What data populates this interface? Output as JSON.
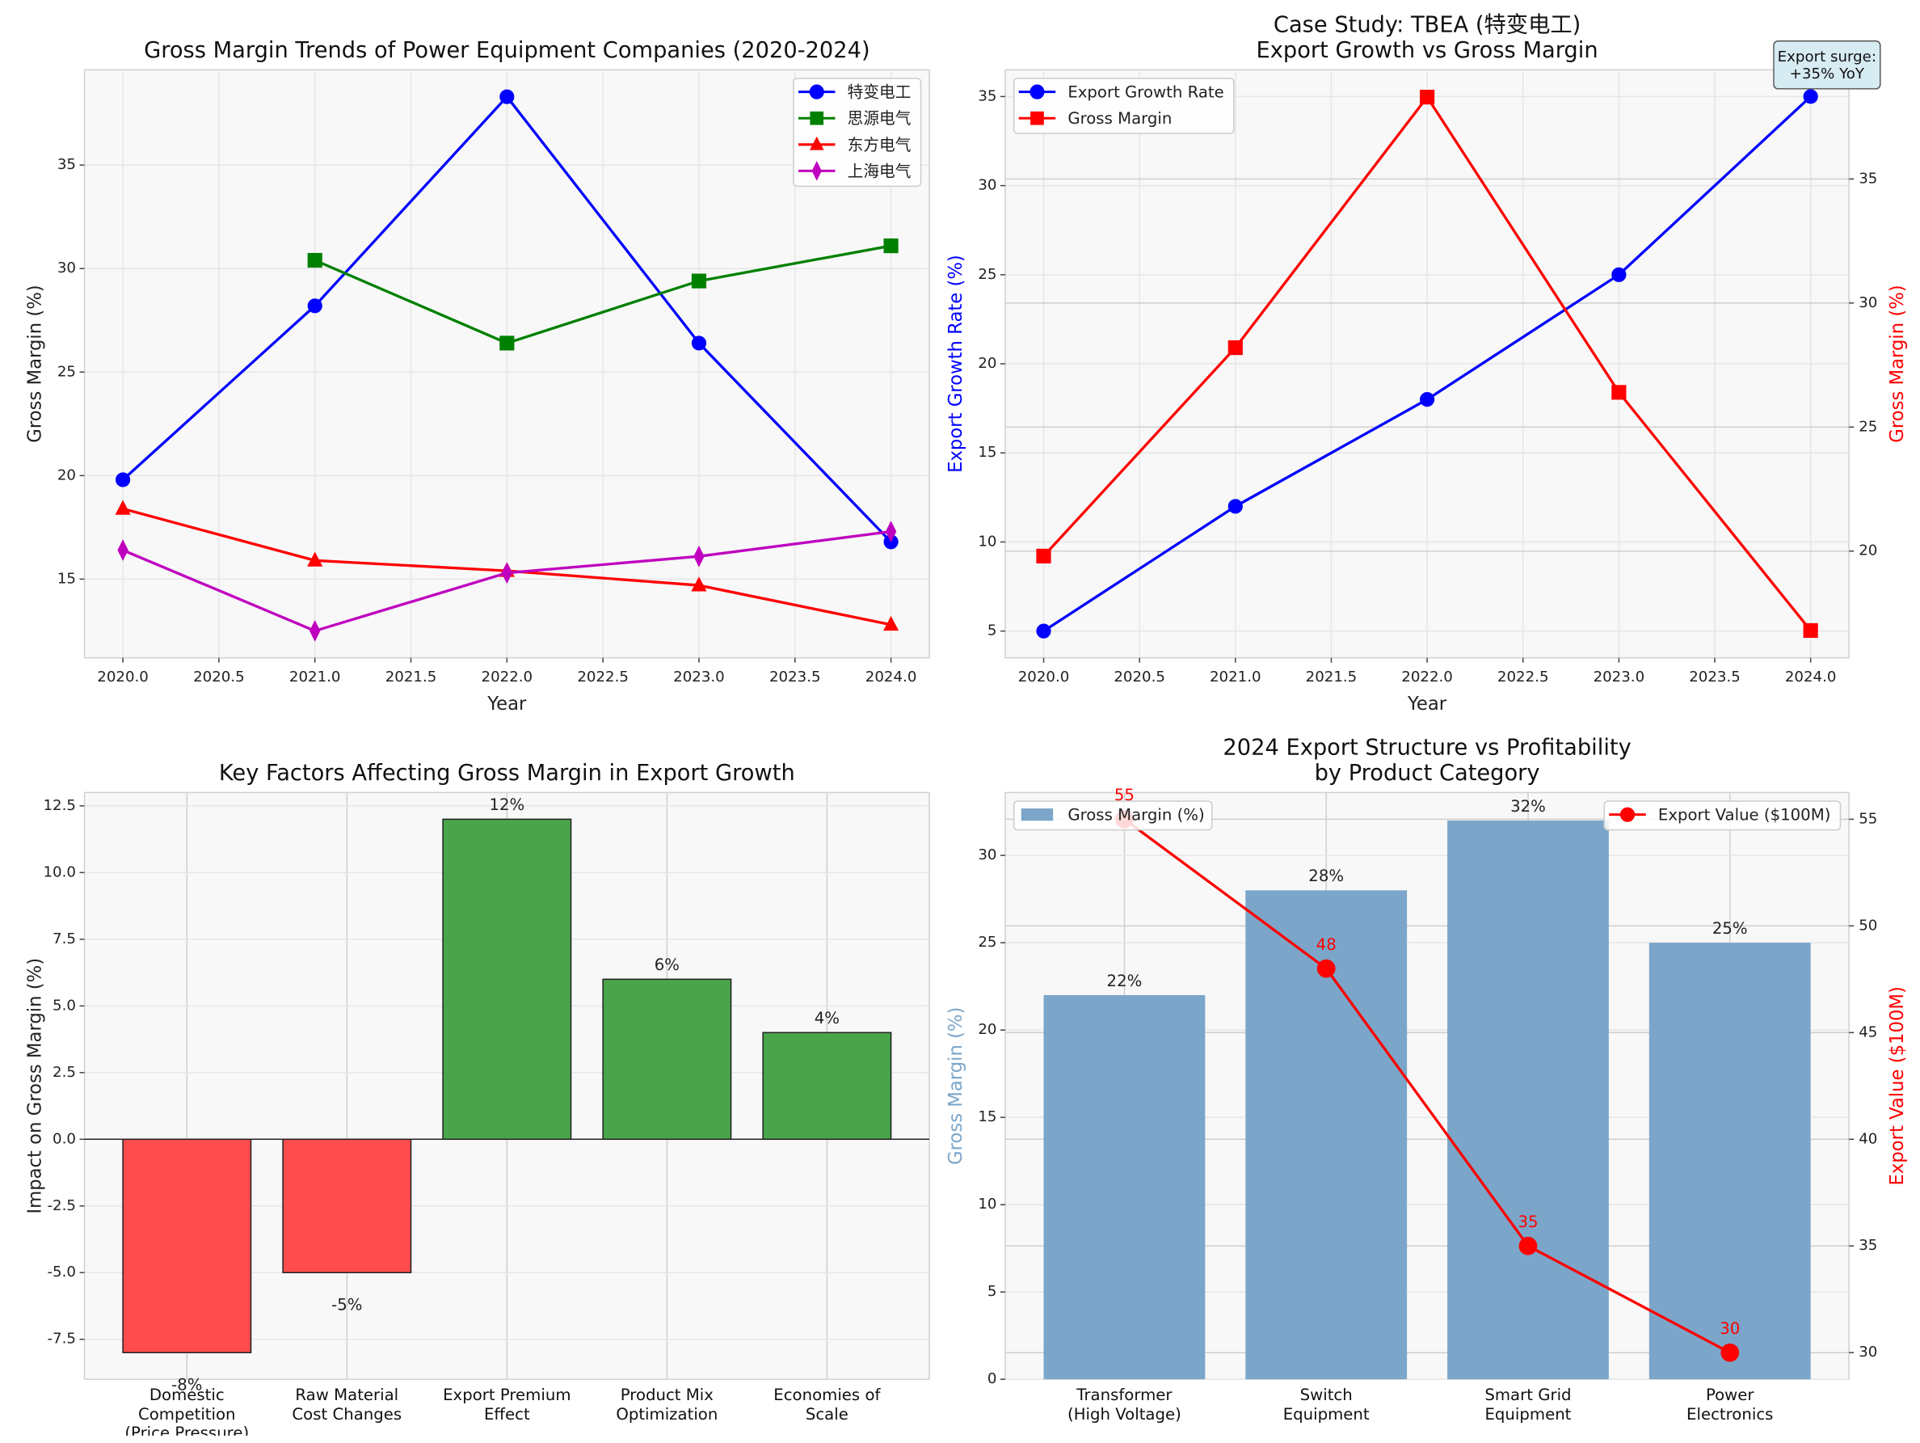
{
  "chart_data": [
    {
      "type": "line",
      "title": "Gross Margin Trends of Power Equipment Companies (2020-2024)",
      "xlabel": "Year",
      "ylabel": "Gross Margin (%)",
      "x": [
        2020,
        2021,
        2022,
        2023,
        2024
      ],
      "xlim": [
        2019.8,
        2024.2
      ],
      "xticks": [
        {
          "value": 2020,
          "label": "2020.0"
        },
        2020.5,
        {
          "value": 2021,
          "label": "2021.0"
        },
        2021.5,
        {
          "value": 2022,
          "label": "2022.0"
        },
        2022.5,
        {
          "value": 2023,
          "label": "2023.0"
        },
        2023.5,
        {
          "value": 2024,
          "label": "2024.0"
        }
      ],
      "ylim": [
        11.2,
        39.6
      ],
      "yticks": [
        15,
        20,
        25,
        30,
        35
      ],
      "grid": true,
      "legend": "upper right",
      "series": [
        {
          "name": "特变电工",
          "color": "#0000ff",
          "marker": "circle",
          "values": [
            19.8,
            28.2,
            38.3,
            26.4,
            16.8
          ]
        },
        {
          "name": "思源电气",
          "color": "#008000",
          "marker": "square",
          "values": [
            null,
            30.4,
            26.4,
            29.4,
            31.1
          ]
        },
        {
          "name": "东方电气",
          "color": "#ff0000",
          "marker": "triangle",
          "values": [
            18.4,
            15.9,
            15.4,
            14.7,
            12.8
          ]
        },
        {
          "name": "上海电气",
          "color": "#bf00bf",
          "marker": "thin-diamond",
          "values": [
            16.4,
            12.5,
            15.3,
            16.1,
            17.3
          ]
        }
      ]
    },
    {
      "type": "line",
      "title": "Case Study: TBEA (特变电工)\nExport Growth vs Gross Margin",
      "xlabel": "Year",
      "ylabel": "Export Growth Rate (%)",
      "y2label": "Gross Margin (%)",
      "x": [
        2020,
        2021,
        2022,
        2023,
        2024
      ],
      "xlim": [
        2019.8,
        2024.2
      ],
      "xticks": [
        {
          "value": 2020,
          "label": "2020.0"
        },
        2020.5,
        {
          "value": 2021,
          "label": "2021.0"
        },
        2021.5,
        {
          "value": 2022,
          "label": "2022.0"
        },
        2022.5,
        {
          "value": 2023,
          "label": "2023.0"
        },
        2023.5,
        {
          "value": 2024,
          "label": "2024.0"
        }
      ],
      "ylim": [
        3.5,
        36.5
      ],
      "yticks": [
        5,
        10,
        15,
        20,
        25,
        30,
        35
      ],
      "y2lim": [
        15.7,
        39.4
      ],
      "y2ticks": [
        20,
        25,
        30,
        35
      ],
      "grid": true,
      "legend": "upper left",
      "annotation": "Export surge:\n+35% YoY",
      "series": [
        {
          "name": "Export Growth Rate",
          "color": "#0000ff",
          "marker": "circle",
          "values": [
            5,
            12,
            18,
            25,
            35
          ]
        },
        {
          "name": "Gross Margin",
          "color": "#ff0000",
          "marker": "square",
          "axis": "y2",
          "values": [
            19.8,
            28.2,
            38.3,
            26.4,
            16.8
          ]
        }
      ]
    },
    {
      "type": "bar",
      "title": "Key Factors Affecting Gross Margin in Export Growth",
      "ylabel": "Impact on Gross Margin (%)",
      "categories": [
        "Domestic Competition\n(Price Pressure)",
        "Raw Material\nCost Changes",
        "Export Premium\nEffect",
        "Product Mix\nOptimization",
        "Economies of\nScale"
      ],
      "values": [
        -8,
        -5,
        12,
        6,
        4
      ],
      "value_labels": [
        "-8%",
        "-5%",
        "12%",
        "6%",
        "4%"
      ],
      "colors": [
        "#ff4d4d",
        "#ff4d4d",
        "#4aa54a",
        "#4aa54a",
        "#4aa54a"
      ],
      "ylim": [
        -9,
        13
      ],
      "yticks": [
        -7.5,
        {
          "value": -5,
          "label": "-5.0"
        },
        -2.5,
        {
          "value": 0,
          "label": "0.0"
        },
        2.5,
        {
          "value": 5,
          "label": "5.0"
        },
        7.5,
        {
          "value": 10,
          "label": "10.0"
        },
        12.5
      ],
      "grid": true
    },
    {
      "type": "combo",
      "title": "2024 Export Structure vs Profitability\nby Product Category",
      "ylabel": "Gross Margin (%)",
      "y2label": "Export Value ($100M)",
      "categories": [
        "Transformer\n(High Voltage)",
        "Switch\nEquipment",
        "Smart Grid\nEquipment",
        "Power\nElectronics"
      ],
      "ylim": [
        0,
        33.6
      ],
      "yticks": [
        0,
        5,
        10,
        15,
        20,
        25,
        30
      ],
      "y2lim": [
        28.75,
        56.25
      ],
      "y2ticks": [
        30,
        35,
        40,
        45,
        50,
        55
      ],
      "grid": true,
      "series": [
        {
          "name": "Gross Margin (%)",
          "kind": "bar",
          "color": "#7ba6c9",
          "legend": "upper left",
          "values": [
            22,
            28,
            32,
            25
          ],
          "value_labels": [
            "22%",
            "28%",
            "32%",
            "25%"
          ]
        },
        {
          "name": "Export Value ($100M)",
          "kind": "line",
          "color": "#ff0000",
          "marker": "circle",
          "axis": "y2",
          "legend": "upper right",
          "values": [
            55,
            48,
            35,
            30
          ]
        }
      ]
    }
  ]
}
